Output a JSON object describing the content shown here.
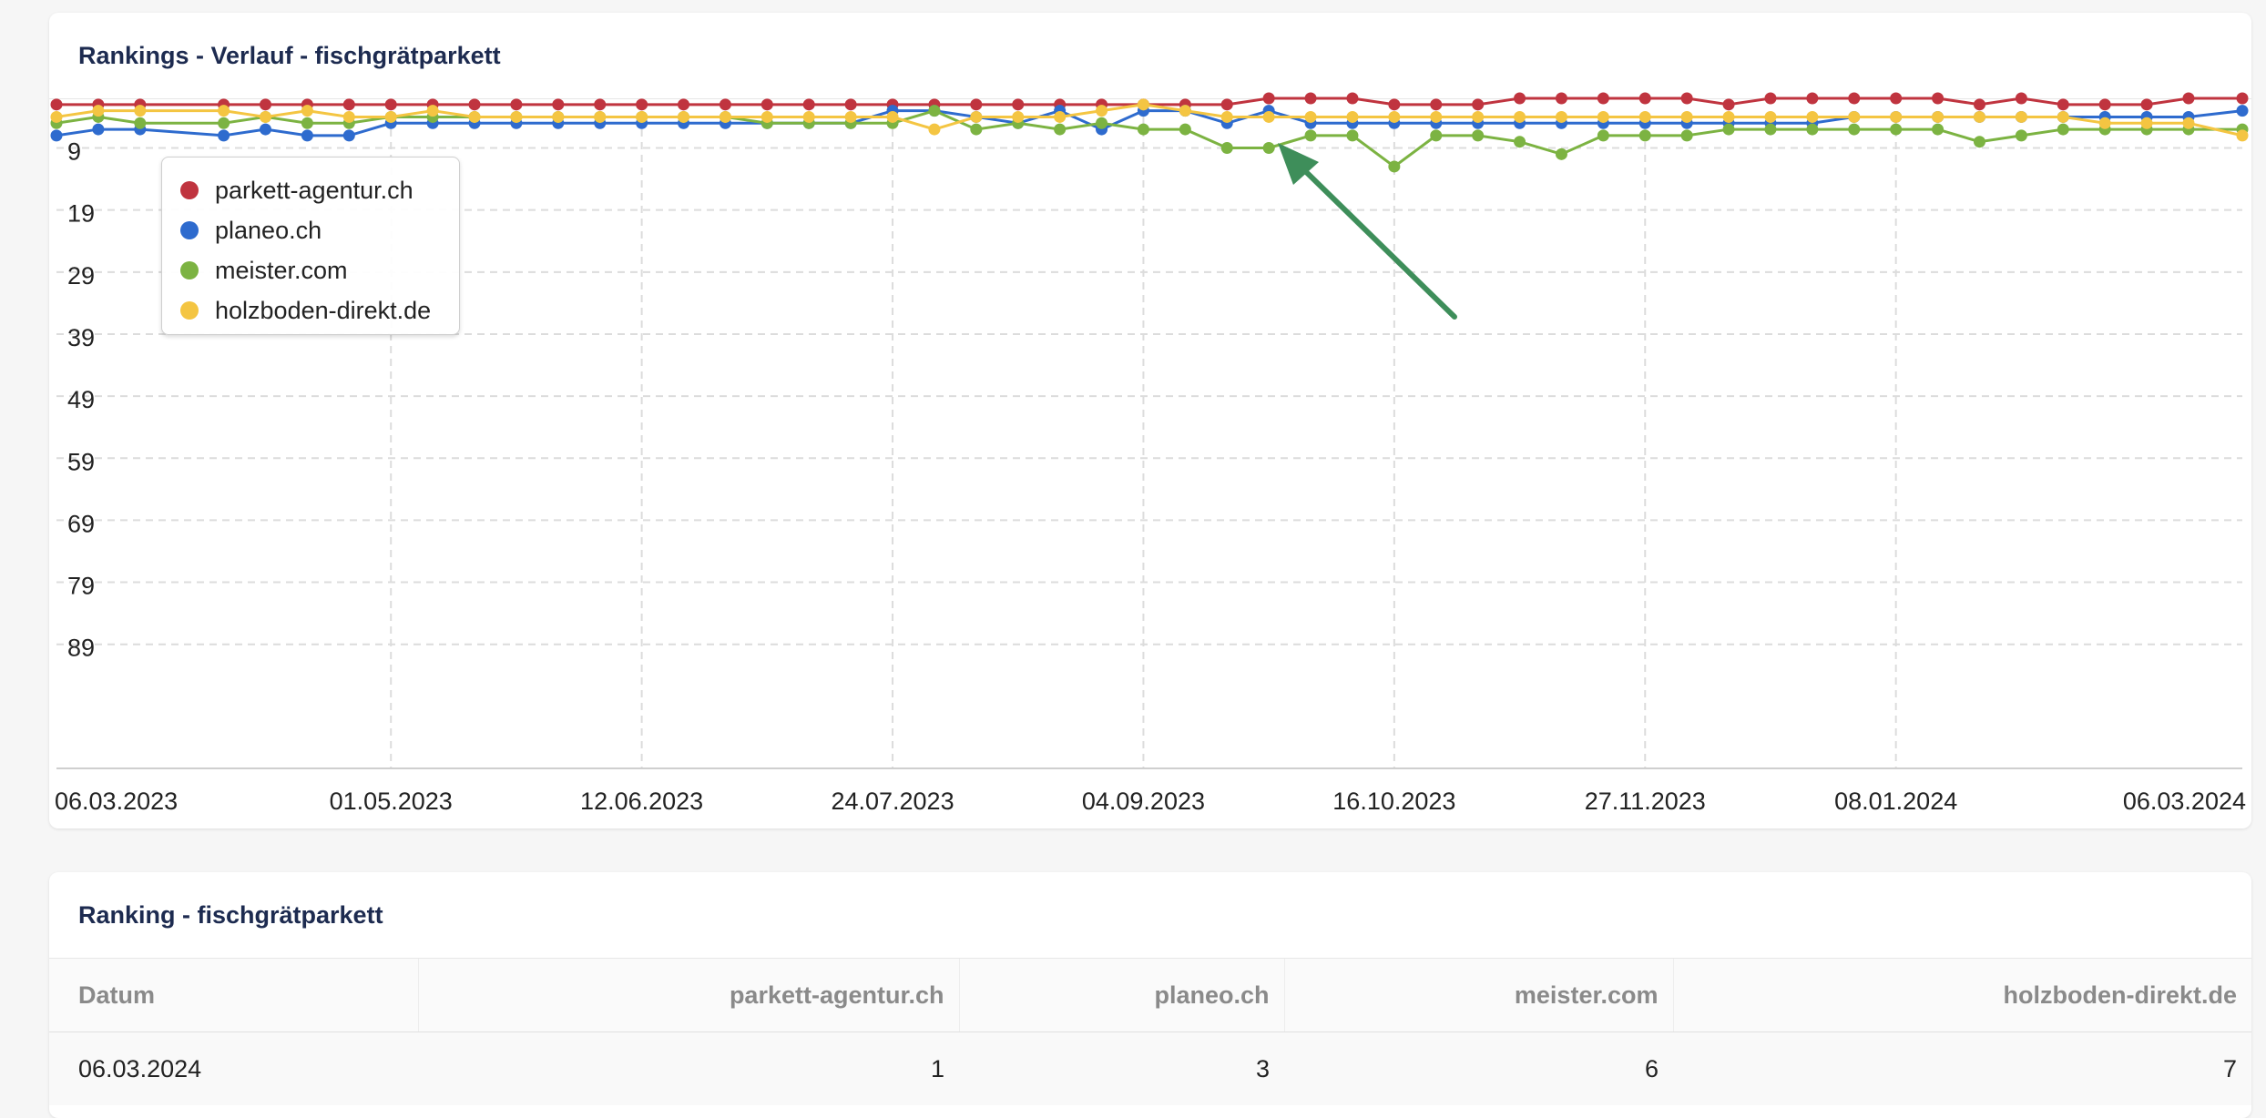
{
  "chart_card": {
    "title": "Rankings - Verlauf - fischgrätparkett"
  },
  "table_card": {
    "title": "Ranking - fischgrätparkett"
  },
  "chart_data": {
    "type": "line",
    "y_reversed": true,
    "ylim": [
      1,
      109
    ],
    "y_ticks": [
      9,
      19,
      29,
      39,
      49,
      59,
      69,
      79,
      89
    ],
    "x_start": "2023-03-06",
    "x_end": "2024-03-06",
    "x_ticks": [
      "06.03.2023",
      "01.05.2023",
      "12.06.2023",
      "24.07.2023",
      "04.09.2023",
      "16.10.2023",
      "27.11.2023",
      "08.01.2024",
      "06.03.2024"
    ],
    "grid": true,
    "legend_position": "top-left",
    "series": [
      {
        "name": "parkett-agentur.ch",
        "color": "#c0343f",
        "dates": [
          "2023-03-06",
          "2023-03-13",
          "2023-03-20",
          "2023-04-03",
          "2023-04-10",
          "2023-04-17",
          "2023-04-24",
          "2023-05-01",
          "2023-05-08",
          "2023-05-15",
          "2023-05-22",
          "2023-05-29",
          "2023-06-05",
          "2023-06-12",
          "2023-06-19",
          "2023-06-26",
          "2023-07-03",
          "2023-07-10",
          "2023-07-17",
          "2023-07-24",
          "2023-07-31",
          "2023-08-07",
          "2023-08-14",
          "2023-08-21",
          "2023-08-28",
          "2023-09-04",
          "2023-09-11",
          "2023-09-18",
          "2023-09-25",
          "2023-10-02",
          "2023-10-09",
          "2023-10-16",
          "2023-10-23",
          "2023-10-30",
          "2023-11-06",
          "2023-11-13",
          "2023-11-20",
          "2023-11-27",
          "2023-12-04",
          "2023-12-11",
          "2023-12-18",
          "2023-12-25",
          "2024-01-01",
          "2024-01-08",
          "2024-01-15",
          "2024-01-22",
          "2024-01-29",
          "2024-02-05",
          "2024-02-12",
          "2024-02-19",
          "2024-02-26",
          "2024-03-06"
        ],
        "values": [
          2,
          2,
          2,
          2,
          2,
          2,
          2,
          2,
          2,
          2,
          2,
          2,
          2,
          2,
          2,
          2,
          2,
          2,
          2,
          2,
          2,
          2,
          2,
          2,
          2,
          2,
          2,
          2,
          1,
          1,
          1,
          2,
          2,
          2,
          1,
          1,
          1,
          1,
          1,
          2,
          1,
          1,
          1,
          1,
          1,
          2,
          1,
          2,
          2,
          2,
          1,
          1
        ]
      },
      {
        "name": "planeo.ch",
        "color": "#2e6bce",
        "dates": [
          "2023-03-06",
          "2023-03-13",
          "2023-03-20",
          "2023-04-03",
          "2023-04-10",
          "2023-04-17",
          "2023-04-24",
          "2023-05-01",
          "2023-05-08",
          "2023-05-15",
          "2023-05-22",
          "2023-05-29",
          "2023-06-05",
          "2023-06-12",
          "2023-06-19",
          "2023-06-26",
          "2023-07-03",
          "2023-07-10",
          "2023-07-17",
          "2023-07-24",
          "2023-07-31",
          "2023-08-07",
          "2023-08-14",
          "2023-08-21",
          "2023-08-28",
          "2023-09-04",
          "2023-09-11",
          "2023-09-18",
          "2023-09-25",
          "2023-10-02",
          "2023-10-09",
          "2023-10-16",
          "2023-10-23",
          "2023-10-30",
          "2023-11-06",
          "2023-11-13",
          "2023-11-20",
          "2023-11-27",
          "2023-12-04",
          "2023-12-11",
          "2023-12-18",
          "2023-12-25",
          "2024-01-01",
          "2024-01-08",
          "2024-01-15",
          "2024-01-22",
          "2024-01-29",
          "2024-02-05",
          "2024-02-12",
          "2024-02-19",
          "2024-02-26",
          "2024-03-06"
        ],
        "values": [
          7,
          6,
          6,
          7,
          6,
          7,
          7,
          5,
          5,
          5,
          5,
          5,
          5,
          5,
          5,
          5,
          5,
          5,
          5,
          3,
          3,
          4,
          5,
          3,
          6,
          3,
          3,
          5,
          3,
          5,
          5,
          5,
          5,
          5,
          5,
          5,
          5,
          5,
          5,
          5,
          5,
          5,
          4,
          4,
          4,
          4,
          4,
          4,
          4,
          4,
          4,
          3
        ]
      },
      {
        "name": "meister.com",
        "color": "#7cb342",
        "dates": [
          "2023-03-06",
          "2023-03-13",
          "2023-03-20",
          "2023-04-03",
          "2023-04-10",
          "2023-04-17",
          "2023-04-24",
          "2023-05-01",
          "2023-05-08",
          "2023-05-15",
          "2023-05-22",
          "2023-05-29",
          "2023-06-05",
          "2023-06-12",
          "2023-06-19",
          "2023-06-26",
          "2023-07-03",
          "2023-07-10",
          "2023-07-17",
          "2023-07-24",
          "2023-07-31",
          "2023-08-07",
          "2023-08-14",
          "2023-08-21",
          "2023-08-28",
          "2023-09-04",
          "2023-09-11",
          "2023-09-18",
          "2023-09-25",
          "2023-10-02",
          "2023-10-09",
          "2023-10-16",
          "2023-10-23",
          "2023-10-30",
          "2023-11-06",
          "2023-11-13",
          "2023-11-20",
          "2023-11-27",
          "2023-12-04",
          "2023-12-11",
          "2023-12-18",
          "2023-12-25",
          "2024-01-01",
          "2024-01-08",
          "2024-01-15",
          "2024-01-22",
          "2024-01-29",
          "2024-02-05",
          "2024-02-12",
          "2024-02-19",
          "2024-02-26",
          "2024-03-06"
        ],
        "values": [
          5,
          4,
          5,
          5,
          4,
          5,
          5,
          4,
          4,
          4,
          4,
          4,
          4,
          4,
          4,
          4,
          5,
          5,
          5,
          5,
          3,
          6,
          5,
          6,
          5,
          6,
          6,
          9,
          9,
          7,
          7,
          12,
          7,
          7,
          8,
          10,
          7,
          7,
          7,
          6,
          6,
          6,
          6,
          6,
          6,
          8,
          7,
          6,
          6,
          6,
          6,
          6
        ]
      },
      {
        "name": "holzboden-direkt.de",
        "color": "#f4c542",
        "dates": [
          "2023-03-06",
          "2023-03-13",
          "2023-03-20",
          "2023-04-03",
          "2023-04-10",
          "2023-04-17",
          "2023-04-24",
          "2023-05-01",
          "2023-05-08",
          "2023-05-15",
          "2023-05-22",
          "2023-05-29",
          "2023-06-05",
          "2023-06-12",
          "2023-06-19",
          "2023-06-26",
          "2023-07-03",
          "2023-07-10",
          "2023-07-17",
          "2023-07-24",
          "2023-07-31",
          "2023-08-07",
          "2023-08-14",
          "2023-08-21",
          "2023-08-28",
          "2023-09-04",
          "2023-09-11",
          "2023-09-18",
          "2023-09-25",
          "2023-10-02",
          "2023-10-09",
          "2023-10-16",
          "2023-10-23",
          "2023-10-30",
          "2023-11-06",
          "2023-11-13",
          "2023-11-20",
          "2023-11-27",
          "2023-12-04",
          "2023-12-11",
          "2023-12-18",
          "2023-12-25",
          "2024-01-01",
          "2024-01-08",
          "2024-01-15",
          "2024-01-22",
          "2024-01-29",
          "2024-02-05",
          "2024-02-12",
          "2024-02-19",
          "2024-02-26",
          "2024-03-06"
        ],
        "values": [
          4,
          3,
          3,
          3,
          4,
          3,
          4,
          4,
          3,
          4,
          4,
          4,
          4,
          4,
          4,
          4,
          4,
          4,
          4,
          4,
          6,
          4,
          4,
          4,
          3,
          2,
          3,
          4,
          4,
          4,
          4,
          4,
          4,
          4,
          4,
          4,
          4,
          4,
          4,
          4,
          4,
          4,
          4,
          4,
          4,
          4,
          4,
          4,
          5,
          5,
          5,
          7
        ]
      }
    ]
  },
  "ranking_table": {
    "columns": [
      "Datum",
      "parkett-agentur.ch",
      "planeo.ch",
      "meister.com",
      "holzboden-direkt.de"
    ],
    "rows": [
      [
        "06.03.2024",
        "1",
        "3",
        "6",
        "7"
      ]
    ]
  }
}
